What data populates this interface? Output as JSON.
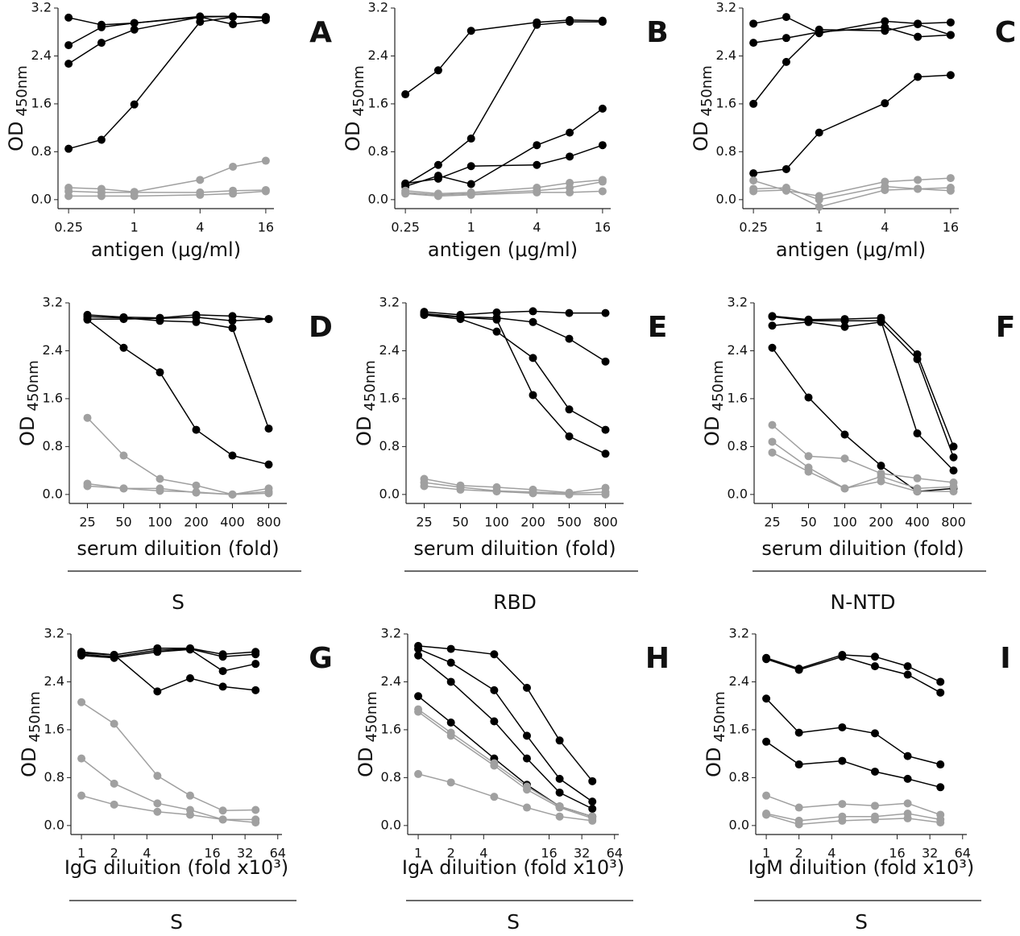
{
  "chart_data": [
    {
      "type": "line",
      "title": "A",
      "ylabel": "OD",
      "ylabel_sub": "450nm",
      "xlabel": "antigen (μg/ml)",
      "x_log": true,
      "x": [
        0.25,
        0.5,
        1,
        4,
        8,
        16
      ],
      "xlim": [
        0.2,
        19
      ],
      "xticks": [
        0.25,
        1,
        4,
        16
      ],
      "ylim": [
        -0.15,
        3.2
      ],
      "yticks": [
        {
          "value": 0,
          "label": "0.0"
        },
        0.8,
        1.6,
        2.4,
        3.2
      ],
      "series": [
        {
          "color": "#000000",
          "values": [
            3.04,
            2.92,
            2.95,
            3.06,
            3.06,
            3.05
          ]
        },
        {
          "color": "#000000",
          "values": [
            2.58,
            2.88,
            2.95,
            3.05,
            3.06,
            3.03
          ]
        },
        {
          "color": "#000000",
          "values": [
            2.27,
            2.62,
            2.84,
            3.05,
            2.93,
            3.0
          ]
        },
        {
          "color": "#000000",
          "values": [
            0.85,
            1.0,
            1.59,
            2.97,
            3.05,
            3.05
          ]
        },
        {
          "color": "#a0a0a0",
          "values": [
            0.2,
            0.18,
            0.13,
            0.33,
            0.55,
            0.65
          ]
        },
        {
          "color": "#a0a0a0",
          "values": [
            0.14,
            0.12,
            0.12,
            0.12,
            0.15,
            0.16
          ]
        },
        {
          "color": "#a0a0a0",
          "values": [
            0.06,
            0.06,
            0.06,
            0.08,
            0.1,
            0.14
          ]
        }
      ]
    },
    {
      "type": "line",
      "title": "B",
      "ylabel": "OD",
      "ylabel_sub": "450nm",
      "xlabel": "antigen (μg/ml)",
      "x_log": true,
      "x": [
        0.25,
        0.5,
        1,
        4,
        8,
        16
      ],
      "xlim": [
        0.2,
        19
      ],
      "xticks": [
        0.25,
        1,
        4,
        16
      ],
      "ylim": [
        -0.15,
        3.2
      ],
      "yticks": [
        {
          "value": 0,
          "label": "0.0"
        },
        0.8,
        1.6,
        2.4,
        3.2
      ],
      "series": [
        {
          "color": "#000000",
          "values": [
            1.76,
            2.16,
            2.82,
            2.96,
            3.0,
            2.99
          ]
        },
        {
          "color": "#000000",
          "values": [
            0.25,
            0.58,
            1.02,
            2.92,
            2.97,
            2.97
          ]
        },
        {
          "color": "#000000",
          "values": [
            0.27,
            0.35,
            0.56,
            0.58,
            0.72,
            0.91
          ]
        },
        {
          "color": "#000000",
          "values": [
            0.22,
            0.4,
            0.26,
            0.91,
            1.12,
            1.52
          ]
        },
        {
          "color": "#a0a0a0",
          "values": [
            0.15,
            0.1,
            0.12,
            0.2,
            0.28,
            0.33
          ]
        },
        {
          "color": "#a0a0a0",
          "values": [
            0.12,
            0.08,
            0.1,
            0.15,
            0.2,
            0.3
          ]
        },
        {
          "color": "#a0a0a0",
          "values": [
            0.1,
            0.06,
            0.08,
            0.12,
            0.12,
            0.14
          ]
        }
      ]
    },
    {
      "type": "line",
      "title": "C",
      "ylabel": "OD",
      "ylabel_sub": "450nm",
      "xlabel": "antigen (μg/ml)",
      "x_log": true,
      "x": [
        0.25,
        0.5,
        1,
        4,
        8,
        16
      ],
      "xlim": [
        0.2,
        19
      ],
      "xticks": [
        0.25,
        1,
        4,
        16
      ],
      "ylim": [
        -0.15,
        3.2
      ],
      "yticks": [
        {
          "value": 0,
          "label": "0.0"
        },
        0.8,
        1.6,
        2.4,
        3.2
      ],
      "series": [
        {
          "color": "#000000",
          "values": [
            2.94,
            3.05,
            2.78,
            2.98,
            2.94,
            2.96
          ]
        },
        {
          "color": "#000000",
          "values": [
            2.62,
            2.7,
            2.8,
            2.88,
            2.72,
            2.75
          ]
        },
        {
          "color": "#000000",
          "values": [
            1.6,
            2.3,
            2.84,
            2.82,
            2.93,
            2.75
          ]
        },
        {
          "color": "#000000",
          "values": [
            0.44,
            0.51,
            1.12,
            1.61,
            2.05,
            2.08
          ]
        },
        {
          "color": "#a0a0a0",
          "values": [
            0.32,
            0.15,
            0.06,
            0.3,
            0.33,
            0.36
          ]
        },
        {
          "color": "#a0a0a0",
          "values": [
            0.18,
            0.2,
            0.0,
            0.22,
            0.18,
            0.2
          ]
        },
        {
          "color": "#a0a0a0",
          "values": [
            0.14,
            0.16,
            -0.12,
            0.16,
            0.18,
            0.15
          ]
        }
      ]
    },
    {
      "type": "line",
      "title": "D",
      "ylabel": "OD",
      "ylabel_sub": "450nm",
      "xlabel": "serum diluition (fold)",
      "group_label": "S",
      "categories": [
        "25",
        "50",
        "100",
        "200",
        "400",
        "800"
      ],
      "ylim": [
        -0.15,
        3.2
      ],
      "yticks": [
        {
          "value": 0,
          "label": "0.0"
        },
        0.8,
        1.6,
        2.4,
        3.2
      ],
      "series": [
        {
          "color": "#000000",
          "values": [
            3.0,
            2.96,
            2.95,
            3.0,
            2.98,
            2.93
          ]
        },
        {
          "color": "#000000",
          "values": [
            2.97,
            2.95,
            2.9,
            2.88,
            2.78,
            1.1
          ]
        },
        {
          "color": "#000000",
          "values": [
            2.93,
            2.93,
            2.94,
            2.96,
            2.9,
            2.93
          ]
        },
        {
          "color": "#000000",
          "values": [
            2.92,
            2.45,
            2.04,
            1.08,
            0.65,
            0.5
          ]
        },
        {
          "color": "#a0a0a0",
          "values": [
            1.28,
            0.65,
            0.26,
            0.15,
            0.0,
            0.1
          ]
        },
        {
          "color": "#a0a0a0",
          "values": [
            0.18,
            0.1,
            0.1,
            0.03,
            0.0,
            0.05
          ]
        },
        {
          "color": "#a0a0a0",
          "values": [
            0.14,
            0.1,
            0.06,
            0.04,
            0.0,
            0.02
          ]
        }
      ]
    },
    {
      "type": "line",
      "title": "E",
      "ylabel": "OD",
      "ylabel_sub": "450nm",
      "xlabel": "serum diluition (fold)",
      "group_label": "RBD",
      "categories": [
        "25",
        "50",
        "100",
        "200",
        "500",
        "800"
      ],
      "ylim": [
        -0.15,
        3.2
      ],
      "yticks": [
        {
          "value": 0,
          "label": "0.0"
        },
        0.8,
        1.6,
        2.4,
        3.2
      ],
      "series": [
        {
          "color": "#000000",
          "values": [
            3.05,
            3.0,
            3.04,
            3.06,
            3.03,
            3.03
          ]
        },
        {
          "color": "#000000",
          "values": [
            3.02,
            2.97,
            2.95,
            2.88,
            2.6,
            2.22
          ]
        },
        {
          "color": "#000000",
          "values": [
            3.0,
            2.93,
            2.72,
            2.28,
            1.42,
            1.08
          ]
        },
        {
          "color": "#000000",
          "values": [
            3.0,
            2.96,
            2.92,
            1.66,
            0.97,
            0.68
          ]
        },
        {
          "color": "#a0a0a0",
          "values": [
            0.26,
            0.15,
            0.12,
            0.08,
            0.03,
            0.11
          ]
        },
        {
          "color": "#a0a0a0",
          "values": [
            0.2,
            0.12,
            0.06,
            0.04,
            0.02,
            0.04
          ]
        },
        {
          "color": "#a0a0a0",
          "values": [
            0.14,
            0.08,
            0.05,
            0.02,
            0.0,
            0.0
          ]
        }
      ]
    },
    {
      "type": "line",
      "title": "F",
      "ylabel": "OD",
      "ylabel_sub": "450nm",
      "xlabel": "serum diluition (fold)",
      "group_label": "N-NTD",
      "categories": [
        "25",
        "50",
        "100",
        "200",
        "400",
        "800"
      ],
      "ylim": [
        -0.15,
        3.2
      ],
      "yticks": [
        {
          "value": 0,
          "label": "0.0"
        },
        0.8,
        1.6,
        2.4,
        3.2
      ],
      "series": [
        {
          "color": "#000000",
          "values": [
            2.98,
            2.92,
            2.93,
            2.95,
            2.34,
            0.8
          ]
        },
        {
          "color": "#000000",
          "values": [
            2.82,
            2.88,
            2.8,
            2.88,
            2.26,
            0.62
          ]
        },
        {
          "color": "#000000",
          "values": [
            2.97,
            2.9,
            2.9,
            2.9,
            1.02,
            0.4
          ]
        },
        {
          "color": "#000000",
          "values": [
            2.45,
            1.62,
            1.0,
            0.48,
            0.05,
            0.1
          ]
        },
        {
          "color": "#a0a0a0",
          "values": [
            1.16,
            0.64,
            0.6,
            0.35,
            0.27,
            0.2
          ]
        },
        {
          "color": "#a0a0a0",
          "values": [
            0.88,
            0.45,
            0.1,
            0.3,
            0.1,
            0.13
          ]
        },
        {
          "color": "#a0a0a0",
          "values": [
            0.7,
            0.38,
            0.1,
            0.22,
            0.05,
            0.05
          ]
        }
      ]
    },
    {
      "type": "line",
      "title": "G",
      "ylabel": "OD",
      "ylabel_sub": "450nm",
      "xlabel": "IgG diluition (fold x10³)",
      "group_label": "S",
      "x_log": true,
      "x": [
        1,
        2,
        5,
        10,
        20,
        40
      ],
      "xlim": [
        0.8,
        70
      ],
      "xticks": [
        1,
        2,
        4,
        16,
        32,
        64
      ],
      "ylim": [
        -0.15,
        3.2
      ],
      "yticks": [
        {
          "value": 0,
          "label": "0.0"
        },
        0.8,
        1.6,
        2.4,
        3.2
      ],
      "series": [
        {
          "color": "#000000",
          "values": [
            2.9,
            2.85,
            2.96,
            2.96,
            2.86,
            2.9
          ]
        },
        {
          "color": "#000000",
          "values": [
            2.86,
            2.82,
            2.93,
            2.95,
            2.82,
            2.86
          ]
        },
        {
          "color": "#000000",
          "values": [
            2.84,
            2.8,
            2.9,
            2.94,
            2.58,
            2.7
          ]
        },
        {
          "color": "#000000",
          "values": [
            2.88,
            2.85,
            2.24,
            2.46,
            2.32,
            2.26
          ]
        },
        {
          "color": "#a0a0a0",
          "values": [
            2.06,
            1.7,
            0.83,
            0.5,
            0.25,
            0.26
          ]
        },
        {
          "color": "#a0a0a0",
          "values": [
            1.12,
            0.7,
            0.37,
            0.26,
            0.1,
            0.1
          ]
        },
        {
          "color": "#a0a0a0",
          "values": [
            0.5,
            0.35,
            0.23,
            0.18,
            0.1,
            0.05
          ]
        }
      ]
    },
    {
      "type": "line",
      "title": "H",
      "ylabel": "OD",
      "ylabel_sub": "450nm",
      "xlabel": "IgA diluition (fold x10³)",
      "group_label": "S",
      "x_log": true,
      "x": [
        1,
        2,
        5,
        10,
        20,
        40
      ],
      "xlim": [
        0.8,
        70
      ],
      "xticks": [
        1,
        2,
        4,
        16,
        32,
        64
      ],
      "ylim": [
        -0.15,
        3.2
      ],
      "yticks": [
        {
          "value": 0,
          "label": "0.0"
        },
        0.8,
        1.6,
        2.4,
        3.2
      ],
      "series": [
        {
          "color": "#000000",
          "values": [
            3.0,
            2.95,
            2.86,
            2.3,
            1.42,
            0.74
          ]
        },
        {
          "color": "#000000",
          "values": [
            2.95,
            2.72,
            2.26,
            1.5,
            0.78,
            0.4
          ]
        },
        {
          "color": "#000000",
          "values": [
            2.84,
            2.4,
            1.74,
            1.12,
            0.55,
            0.28
          ]
        },
        {
          "color": "#000000",
          "values": [
            2.16,
            1.72,
            1.12,
            0.68,
            0.32,
            0.15
          ]
        },
        {
          "color": "#a0a0a0",
          "values": [
            1.94,
            1.55,
            1.04,
            0.65,
            0.32,
            0.15
          ]
        },
        {
          "color": "#a0a0a0",
          "values": [
            1.9,
            1.5,
            1.0,
            0.6,
            0.3,
            0.12
          ]
        },
        {
          "color": "#a0a0a0",
          "values": [
            0.86,
            0.72,
            0.48,
            0.3,
            0.15,
            0.08
          ]
        }
      ]
    },
    {
      "type": "line",
      "title": "I",
      "ylabel": "OD",
      "ylabel_sub": "450nm",
      "xlabel": "IgM diluition (fold x10³)",
      "group_label": "S",
      "x_log": true,
      "x": [
        1,
        2,
        5,
        10,
        20,
        40
      ],
      "xlim": [
        0.8,
        70
      ],
      "xticks": [
        1,
        2,
        4,
        16,
        32,
        64
      ],
      "ylim": [
        -0.15,
        3.2
      ],
      "yticks": [
        {
          "value": 0,
          "label": "0.0"
        },
        0.8,
        1.6,
        2.4,
        3.2
      ],
      "series": [
        {
          "color": "#000000",
          "values": [
            2.8,
            2.62,
            2.85,
            2.82,
            2.66,
            2.4
          ]
        },
        {
          "color": "#000000",
          "values": [
            2.78,
            2.6,
            2.82,
            2.66,
            2.52,
            2.22
          ]
        },
        {
          "color": "#000000",
          "values": [
            2.12,
            1.55,
            1.64,
            1.54,
            1.16,
            1.02
          ]
        },
        {
          "color": "#000000",
          "values": [
            1.4,
            1.02,
            1.08,
            0.9,
            0.78,
            0.64
          ]
        },
        {
          "color": "#a0a0a0",
          "values": [
            0.5,
            0.3,
            0.36,
            0.33,
            0.37,
            0.18
          ]
        },
        {
          "color": "#a0a0a0",
          "values": [
            0.2,
            0.08,
            0.15,
            0.15,
            0.2,
            0.1
          ]
        },
        {
          "color": "#a0a0a0",
          "values": [
            0.18,
            0.02,
            0.08,
            0.1,
            0.12,
            0.05
          ]
        }
      ]
    }
  ]
}
